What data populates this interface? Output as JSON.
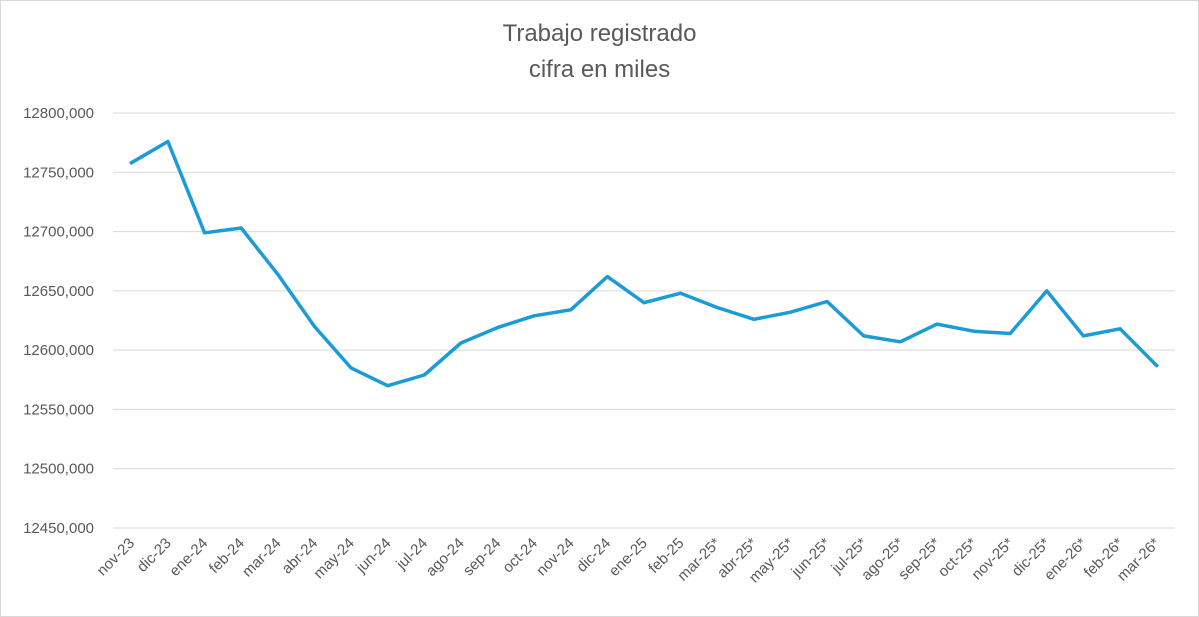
{
  "chart_data": {
    "type": "line",
    "title": "Trabajo registrado",
    "subtitle": "cifra en miles",
    "categories": [
      "nov-23",
      "dic-23",
      "ene-24",
      "feb-24",
      "mar-24",
      "abr-24",
      "may-24",
      "jun-24",
      "jul-24",
      "ago-24",
      "sep-24",
      "oct-24",
      "nov-24",
      "dic-24",
      "ene-25",
      "feb-25",
      "mar-25*",
      "abr-25*",
      "may-25*",
      "jun-25*",
      "jul-25*",
      "ago-25*",
      "sep-25*",
      "oct-25*",
      "nov-25*",
      "dic-25*",
      "ene-26*",
      "feb-26*",
      "mar-26*"
    ],
    "series": [
      {
        "values": [
          12758,
          12776,
          12699,
          12703,
          12664,
          12620,
          12585,
          12570,
          12579,
          12606,
          12619,
          12629,
          12634,
          12662,
          12640,
          12648,
          12636,
          12626,
          12632,
          12641,
          12612,
          12607,
          12622,
          12616,
          12614,
          12650,
          12612,
          12618,
          12587
        ],
        "color": "#1b9bd7"
      }
    ],
    "y_ticks": [
      "12450,000",
      "12500,000",
      "12550,000",
      "12600,000",
      "12650,000",
      "12700,000",
      "12750,000",
      "12800,000"
    ],
    "ylim": [
      12450,
      12800
    ],
    "grid": true,
    "legend": "none"
  }
}
